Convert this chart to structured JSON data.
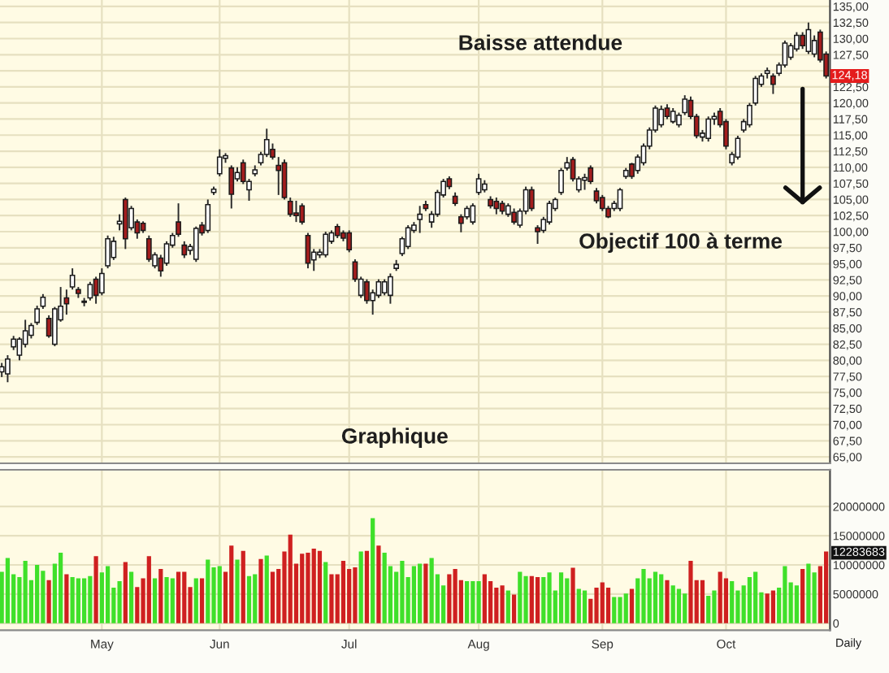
{
  "chart_data": [
    {
      "type": "candlestick",
      "categories": [
        null,
        null,
        null,
        null,
        null,
        null,
        null,
        null,
        null,
        null,
        null,
        null,
        null,
        null,
        null,
        null,
        null,
        null,
        null,
        null,
        null,
        null,
        null,
        null,
        null,
        null,
        null,
        null,
        null,
        null,
        null,
        null,
        null,
        null,
        null,
        null,
        null,
        null,
        null,
        null,
        null,
        null,
        null,
        null,
        null,
        null,
        null,
        null,
        null,
        null,
        null,
        null,
        null,
        null,
        null,
        null,
        null,
        null,
        null,
        null,
        null,
        null,
        null,
        null,
        null,
        null,
        null,
        null,
        null,
        null,
        null,
        null,
        null,
        null,
        null,
        null,
        null,
        null,
        null,
        null,
        null,
        null,
        null,
        null,
        null,
        null,
        null,
        null,
        null,
        null,
        null,
        null,
        null,
        null,
        null,
        null,
        null,
        null,
        null,
        null,
        null,
        null,
        null,
        null,
        null,
        null,
        null,
        null,
        null,
        null,
        null,
        null,
        null,
        null,
        null,
        null,
        null,
        null,
        null,
        null,
        null,
        null,
        null,
        null,
        null,
        null,
        null,
        null,
        null,
        null,
        null,
        null,
        null,
        null,
        null,
        null,
        null,
        null,
        null,
        null,
        null
      ],
      "ohlc": [
        [
          78.2,
          79.6,
          77.4,
          79.0
        ],
        [
          77.9,
          80.8,
          76.6,
          80.2
        ],
        [
          82.1,
          83.8,
          81.6,
          83.3
        ],
        [
          80.8,
          83.6,
          80.0,
          83.3
        ],
        [
          82.5,
          86.3,
          82.0,
          84.6
        ],
        [
          83.9,
          85.8,
          83.4,
          85.4
        ],
        [
          85.9,
          88.5,
          85.5,
          88.0
        ],
        [
          88.4,
          90.3,
          88.0,
          89.8
        ],
        [
          86.5,
          87.0,
          83.5,
          83.8
        ],
        [
          82.5,
          88.3,
          82.2,
          88.0
        ],
        [
          86.3,
          91.4,
          86.0,
          88.4
        ],
        [
          89.7,
          91.0,
          87.1,
          88.8
        ],
        [
          91.4,
          94.3,
          91.0,
          93.2
        ],
        [
          91.0,
          91.4,
          89.7,
          90.4
        ],
        [
          89.2,
          89.7,
          88.4,
          89.0
        ],
        [
          89.7,
          92.2,
          89.3,
          91.8
        ],
        [
          92.6,
          93.0,
          88.8,
          90.1
        ],
        [
          90.5,
          94.3,
          90.1,
          93.5
        ],
        [
          94.7,
          99.4,
          94.3,
          98.9
        ],
        [
          96.0,
          99.2,
          95.6,
          98.5
        ],
        [
          101.2,
          102.7,
          100.2,
          101.6
        ],
        [
          105.0,
          105.3,
          97.3,
          98.9
        ],
        [
          100.6,
          104.0,
          100.2,
          103.6
        ],
        [
          101.5,
          101.9,
          98.9,
          99.8
        ],
        [
          101.3,
          101.6,
          99.8,
          100.2
        ],
        [
          98.9,
          99.4,
          95.3,
          95.7
        ],
        [
          94.7,
          96.8,
          94.3,
          96.4
        ],
        [
          95.9,
          96.4,
          93.0,
          93.9
        ],
        [
          95.1,
          98.5,
          94.7,
          98.1
        ],
        [
          97.9,
          99.8,
          97.5,
          99.4
        ],
        [
          101.5,
          104.4,
          99.2,
          99.6
        ],
        [
          97.9,
          98.5,
          95.9,
          96.4
        ],
        [
          97.1,
          98.1,
          96.4,
          97.7
        ],
        [
          95.7,
          100.8,
          95.3,
          100.5
        ],
        [
          101.0,
          101.5,
          99.4,
          99.8
        ],
        [
          100.2,
          105.0,
          99.8,
          104.2
        ],
        [
          106.1,
          107.0,
          105.7,
          106.6
        ],
        [
          109.0,
          112.8,
          108.6,
          111.6
        ],
        [
          111.4,
          112.2,
          110.7,
          111.8
        ],
        [
          109.9,
          110.3,
          103.6,
          105.8
        ],
        [
          108.2,
          110.0,
          107.8,
          109.2
        ],
        [
          110.7,
          111.2,
          107.4,
          107.8
        ],
        [
          106.5,
          108.2,
          104.8,
          107.8
        ],
        [
          109.0,
          110.3,
          108.6,
          109.6
        ],
        [
          110.7,
          112.4,
          110.3,
          112.0
        ],
        [
          112.0,
          116.0,
          111.6,
          114.3
        ],
        [
          112.8,
          113.7,
          111.2,
          111.6
        ],
        [
          110.3,
          111.6,
          105.7,
          109.5
        ],
        [
          110.7,
          111.2,
          105.0,
          105.3
        ],
        [
          104.7,
          105.3,
          102.3,
          102.7
        ],
        [
          102.9,
          104.8,
          101.5,
          102.5
        ],
        [
          104.0,
          104.4,
          101.1,
          101.5
        ],
        [
          99.4,
          99.8,
          94.3,
          95.1
        ],
        [
          95.6,
          97.3,
          93.9,
          96.8
        ],
        [
          96.4,
          97.3,
          95.9,
          96.8
        ],
        [
          96.4,
          100.0,
          96.0,
          99.6
        ],
        [
          98.5,
          100.2,
          98.1,
          99.8
        ],
        [
          100.8,
          101.2,
          99.0,
          99.4
        ],
        [
          99.8,
          100.2,
          98.5,
          99.0
        ],
        [
          99.8,
          100.2,
          96.8,
          97.2
        ],
        [
          95.3,
          95.7,
          92.2,
          92.6
        ],
        [
          90.1,
          93.0,
          89.7,
          92.6
        ],
        [
          92.2,
          92.6,
          88.8,
          89.3
        ],
        [
          89.3,
          91.0,
          87.1,
          90.5
        ],
        [
          90.1,
          92.6,
          89.7,
          92.2
        ],
        [
          90.5,
          92.6,
          90.1,
          92.2
        ],
        [
          90.1,
          93.5,
          88.8,
          93.0
        ],
        [
          94.3,
          95.6,
          93.9,
          94.9
        ],
        [
          96.6,
          99.2,
          96.2,
          98.9
        ],
        [
          97.7,
          101.0,
          97.3,
          100.6
        ],
        [
          100.2,
          101.5,
          99.8,
          101.0
        ],
        [
          101.9,
          104.0,
          99.8,
          102.7
        ],
        [
          104.2,
          104.8,
          103.2,
          103.6
        ],
        [
          101.5,
          103.2,
          100.6,
          102.7
        ],
        [
          102.7,
          106.5,
          102.3,
          106.1
        ],
        [
          105.7,
          108.2,
          105.3,
          107.8
        ],
        [
          108.2,
          108.6,
          106.6,
          107.0
        ],
        [
          105.5,
          106.1,
          104.0,
          104.4
        ],
        [
          102.3,
          102.7,
          99.9,
          101.3
        ],
        [
          102.3,
          104.0,
          101.9,
          103.6
        ],
        [
          101.5,
          104.4,
          101.1,
          104.0
        ],
        [
          106.1,
          109.0,
          105.7,
          108.2
        ],
        [
          106.5,
          108.0,
          106.1,
          107.4
        ],
        [
          105.0,
          105.5,
          103.6,
          104.0
        ],
        [
          104.7,
          105.3,
          102.7,
          103.6
        ],
        [
          104.4,
          104.8,
          102.7,
          103.2
        ],
        [
          102.7,
          104.4,
          102.3,
          104.0
        ],
        [
          103.0,
          103.6,
          101.1,
          101.5
        ],
        [
          101.0,
          103.6,
          100.6,
          103.2
        ],
        [
          103.2,
          107.0,
          102.7,
          106.5
        ],
        [
          106.5,
          107.0,
          103.2,
          103.6
        ],
        [
          100.6,
          101.0,
          98.1,
          100.0
        ],
        [
          100.2,
          102.3,
          99.8,
          101.9
        ],
        [
          101.5,
          104.8,
          101.1,
          104.4
        ],
        [
          103.6,
          105.3,
          103.2,
          105.0
        ],
        [
          106.1,
          109.9,
          105.7,
          109.5
        ],
        [
          109.9,
          111.6,
          109.5,
          110.7
        ],
        [
          111.2,
          111.6,
          107.8,
          108.2
        ],
        [
          106.5,
          108.6,
          106.1,
          108.2
        ],
        [
          108.0,
          109.0,
          106.5,
          108.4
        ],
        [
          109.9,
          110.3,
          107.4,
          107.8
        ],
        [
          106.3,
          106.8,
          104.4,
          104.8
        ],
        [
          105.3,
          105.7,
          103.2,
          103.6
        ],
        [
          103.6,
          104.0,
          102.1,
          102.3
        ],
        [
          103.6,
          104.8,
          103.2,
          104.4
        ],
        [
          103.6,
          106.8,
          103.2,
          106.5
        ],
        [
          108.6,
          109.9,
          108.2,
          109.5
        ],
        [
          110.5,
          110.7,
          108.2,
          108.6
        ],
        [
          109.5,
          112.0,
          109.0,
          111.6
        ],
        [
          110.7,
          113.7,
          110.3,
          113.3
        ],
        [
          113.3,
          116.2,
          112.8,
          115.8
        ],
        [
          115.8,
          119.6,
          115.4,
          119.2
        ],
        [
          116.6,
          119.6,
          116.2,
          119.0
        ],
        [
          119.2,
          119.8,
          117.5,
          117.9
        ],
        [
          117.1,
          119.2,
          116.8,
          118.7
        ],
        [
          116.6,
          118.5,
          116.2,
          118.1
        ],
        [
          118.5,
          121.2,
          118.1,
          120.6
        ],
        [
          120.4,
          121.0,
          117.5,
          117.9
        ],
        [
          117.9,
          118.3,
          114.5,
          114.9
        ],
        [
          114.7,
          115.8,
          114.0,
          115.3
        ],
        [
          114.5,
          117.9,
          114.0,
          117.5
        ],
        [
          117.5,
          118.5,
          116.6,
          117.9
        ],
        [
          118.7,
          119.2,
          116.2,
          116.6
        ],
        [
          117.1,
          117.5,
          112.8,
          113.3
        ],
        [
          110.7,
          112.4,
          110.3,
          112.0
        ],
        [
          111.6,
          114.9,
          111.2,
          114.5
        ],
        [
          115.8,
          117.5,
          115.4,
          117.1
        ],
        [
          116.6,
          120.0,
          116.2,
          119.6
        ],
        [
          120.0,
          124.2,
          119.6,
          123.8
        ],
        [
          122.9,
          124.6,
          122.5,
          124.2
        ],
        [
          124.6,
          125.5,
          123.8,
          125.0
        ],
        [
          124.2,
          124.6,
          121.4,
          122.9
        ],
        [
          124.6,
          126.3,
          124.2,
          125.9
        ],
        [
          125.9,
          129.7,
          125.5,
          129.3
        ],
        [
          127.1,
          129.3,
          126.7,
          128.9
        ],
        [
          128.4,
          131.0,
          128.0,
          130.5
        ],
        [
          130.5,
          131.0,
          128.4,
          128.9
        ],
        [
          128.0,
          132.5,
          127.6,
          131.4
        ],
        [
          127.6,
          130.5,
          127.1,
          129.7
        ],
        [
          131.0,
          131.4,
          126.3,
          126.7
        ],
        [
          127.6,
          128.0,
          123.8,
          124.18
        ]
      ],
      "colors": [
        "#ffffff",
        "#ffffff",
        "#ffffff",
        "#ffffff",
        "#ffffff",
        "#ffffff",
        "#ffffff",
        "#ffffff",
        "#a31d1d",
        "#ffffff",
        "#ffffff",
        "#a31d1d",
        "#ffffff",
        "#a31d1d",
        "#a31d1d",
        "#ffffff",
        "#a31d1d",
        "#ffffff",
        "#ffffff",
        "#ffffff",
        "#ffffff",
        "#a31d1d",
        "#ffffff",
        "#a31d1d",
        "#a31d1d",
        "#a31d1d",
        "#ffffff",
        "#a31d1d",
        "#ffffff",
        "#ffffff",
        "#a31d1d",
        "#a31d1d",
        "#ffffff",
        "#ffffff",
        "#a31d1d",
        "#ffffff",
        "#ffffff",
        "#ffffff",
        "#ffffff",
        "#a31d1d",
        "#ffffff",
        "#a31d1d",
        "#ffffff",
        "#ffffff",
        "#ffffff",
        "#ffffff",
        "#a31d1d",
        "#a31d1d",
        "#a31d1d",
        "#a31d1d",
        "#a31d1d",
        "#a31d1d",
        "#a31d1d",
        "#ffffff",
        "#ffffff",
        "#ffffff",
        "#ffffff",
        "#a31d1d",
        "#a31d1d",
        "#a31d1d",
        "#a31d1d",
        "#ffffff",
        "#a31d1d",
        "#ffffff",
        "#ffffff",
        "#ffffff",
        "#ffffff",
        "#ffffff",
        "#ffffff",
        "#ffffff",
        "#ffffff",
        "#ffffff",
        "#a31d1d",
        "#ffffff",
        "#ffffff",
        "#ffffff",
        "#a31d1d",
        "#a31d1d",
        "#a31d1d",
        "#ffffff",
        "#ffffff",
        "#ffffff",
        "#ffffff",
        "#a31d1d",
        "#a31d1d",
        "#a31d1d",
        "#ffffff",
        "#a31d1d",
        "#ffffff",
        "#ffffff",
        "#a31d1d",
        "#a31d1d",
        "#ffffff",
        "#ffffff",
        "#ffffff",
        "#ffffff",
        "#ffffff",
        "#a31d1d",
        "#ffffff",
        "#ffffff",
        "#a31d1d",
        "#a31d1d",
        "#a31d1d",
        "#a31d1d",
        "#ffffff",
        "#ffffff",
        "#ffffff",
        "#a31d1d",
        "#ffffff",
        "#ffffff",
        "#ffffff",
        "#ffffff",
        "#ffffff",
        "#a31d1d",
        "#ffffff",
        "#ffffff",
        "#ffffff",
        "#a31d1d",
        "#a31d1d",
        "#ffffff",
        "#ffffff",
        "#ffffff",
        "#a31d1d",
        "#a31d1d",
        "#ffffff",
        "#ffffff",
        "#ffffff",
        "#ffffff",
        "#ffffff",
        "#ffffff",
        "#ffffff",
        "#a31d1d",
        "#ffffff",
        "#ffffff",
        "#ffffff",
        "#ffffff",
        "#a31d1d",
        "#ffffff",
        "#ffffff",
        "#a31d1d",
        "#a31d1d"
      ],
      "value_labels": [
        null,
        null,
        null,
        null,
        null,
        null,
        null,
        null,
        null,
        null,
        null,
        null,
        null,
        null,
        null,
        null,
        null,
        null,
        null,
        null,
        null,
        null,
        null,
        null,
        null,
        null,
        null,
        null,
        null,
        null,
        null,
        null,
        null,
        null,
        null,
        null,
        null,
        null,
        null,
        null,
        null,
        null,
        null,
        null,
        null,
        null,
        null,
        null,
        null,
        null,
        null,
        null,
        null,
        null,
        null,
        null,
        null,
        null,
        null,
        null,
        null,
        null,
        null,
        null,
        null,
        null,
        null,
        null,
        null,
        null,
        null,
        null,
        null,
        null,
        null,
        null,
        null,
        null,
        null,
        null,
        null,
        null,
        null,
        null,
        null,
        null,
        null,
        null,
        null,
        null,
        null,
        null,
        null,
        null,
        null,
        null,
        null,
        null,
        null,
        null,
        null,
        null,
        null,
        null,
        null,
        null,
        null,
        null,
        null,
        null,
        null,
        null,
        null,
        null,
        null,
        null,
        null,
        null,
        null,
        null,
        null,
        null,
        null,
        null,
        null,
        null,
        null,
        null,
        null,
        null,
        null,
        null,
        null,
        null,
        null,
        null,
        null,
        null,
        null,
        null,
        "124,18"
      ],
      "ylim": [
        64,
        136
      ],
      "yticks": [
        {
          "value": 65,
          "label": "65,00"
        },
        {
          "value": 67.5,
          "label": "67,50"
        },
        {
          "value": 70,
          "label": "70,00"
        },
        {
          "value": 72.5,
          "label": "72,50"
        },
        {
          "value": 75,
          "label": "75,00"
        },
        {
          "value": 77.5,
          "label": "77,50"
        },
        {
          "value": 80,
          "label": "80,00"
        },
        {
          "value": 82.5,
          "label": "82,50"
        },
        {
          "value": 85,
          "label": "85,00"
        },
        {
          "value": 87.5,
          "label": "87,50"
        },
        {
          "value": 90,
          "label": "90,00"
        },
        {
          "value": 92.5,
          "label": "92,50"
        },
        {
          "value": 95,
          "label": "95,00"
        },
        {
          "value": 97.5,
          "label": "97,50"
        },
        {
          "value": 100,
          "label": "100,00"
        },
        {
          "value": 102.5,
          "label": "102,50"
        },
        {
          "value": 105,
          "label": "105,00"
        },
        {
          "value": 107.5,
          "label": "107,50"
        },
        {
          "value": 110,
          "label": "110,00"
        },
        {
          "value": 112.5,
          "label": "112,50"
        },
        {
          "value": 115,
          "label": "115,00"
        },
        {
          "value": 117.5,
          "label": "117,50"
        },
        {
          "value": 120,
          "label": "120,00"
        },
        {
          "value": 122.5,
          "label": "122,50"
        },
        {
          "value": 125,
          "label": null
        },
        {
          "value": 127.5,
          "label": "127,50"
        },
        {
          "value": 130,
          "label": "130,00"
        },
        {
          "value": 132.5,
          "label": "132,50"
        },
        {
          "value": 135,
          "label": "135,00"
        }
      ],
      "grid": true,
      "annotations": [
        "Baisse attendue",
        "Objectif 100 à terme",
        "Graphique"
      ]
    },
    {
      "type": "bar",
      "categories": [
        null,
        null,
        null,
        null,
        null,
        null,
        null,
        null,
        null,
        null,
        null,
        null,
        null,
        null,
        null,
        null,
        null,
        "May",
        null,
        null,
        null,
        null,
        null,
        null,
        null,
        null,
        null,
        null,
        null,
        null,
        null,
        null,
        null,
        null,
        null,
        null,
        null,
        "Jun",
        null,
        null,
        null,
        null,
        null,
        null,
        null,
        null,
        null,
        null,
        null,
        null,
        null,
        null,
        null,
        null,
        null,
        null,
        null,
        null,
        null,
        "Jul",
        null,
        null,
        null,
        null,
        null,
        null,
        null,
        null,
        null,
        null,
        null,
        null,
        null,
        null,
        null,
        null,
        null,
        null,
        null,
        null,
        null,
        "Aug",
        null,
        null,
        null,
        null,
        null,
        null,
        null,
        null,
        null,
        null,
        null,
        null,
        null,
        null,
        null,
        null,
        null,
        null,
        null,
        null,
        "Sep",
        null,
        null,
        null,
        null,
        null,
        null,
        null,
        null,
        null,
        null,
        null,
        null,
        null,
        null,
        null,
        null,
        null,
        null,
        null,
        null,
        "Oct",
        null,
        null,
        null,
        null,
        null,
        null,
        null,
        null,
        null,
        null,
        null,
        null,
        null,
        null,
        null,
        null,
        null
      ],
      "values": [
        8800000,
        11200000,
        8400000,
        7900000,
        10700000,
        7400000,
        10000000,
        9000000,
        7400000,
        10200000,
        12100000,
        8400000,
        7900000,
        7700000,
        7700000,
        8100000,
        11500000,
        8700000,
        9800000,
        6100000,
        7200000,
        10500000,
        8800000,
        6200000,
        7700000,
        11500000,
        7700000,
        9300000,
        7900000,
        7700000,
        8800000,
        8800000,
        6200000,
        7700000,
        7700000,
        10900000,
        9600000,
        9800000,
        8800000,
        13300000,
        10900000,
        12400000,
        8100000,
        8400000,
        11000000,
        11600000,
        8800000,
        9300000,
        12300000,
        15200000,
        10200000,
        11900000,
        12100000,
        12800000,
        12400000,
        10500000,
        8400000,
        8400000,
        10700000,
        9300000,
        9600000,
        12300000,
        12400000,
        18000000,
        13300000,
        12100000,
        9800000,
        8800000,
        10700000,
        7900000,
        9800000,
        10200000,
        10200000,
        11200000,
        8400000,
        6500000,
        8400000,
        9300000,
        7400000,
        7200000,
        7200000,
        7200000,
        8400000,
        7200000,
        6100000,
        6500000,
        5600000,
        4900000,
        8800000,
        8100000,
        8100000,
        7900000,
        7900000,
        8700000,
        5600000,
        8700000,
        7700000,
        9500000,
        5900000,
        5600000,
        4200000,
        6100000,
        7000000,
        6100000,
        4500000,
        4500000,
        5100000,
        5900000,
        7700000,
        9300000,
        7700000,
        8800000,
        8400000,
        7400000,
        6500000,
        5900000,
        5100000,
        10700000,
        7400000,
        7400000,
        4700000,
        5600000,
        8800000,
        7700000,
        7200000,
        5600000,
        6500000,
        7900000,
        8800000,
        5300000,
        5100000,
        5600000,
        6100000,
        9800000,
        7000000,
        6500000,
        9300000,
        10200000,
        8700000,
        9800000,
        12283683
      ],
      "colors": [
        "#3fe02a",
        "#3fe02a",
        "#3fe02a",
        "#3fe02a",
        "#3fe02a",
        "#3fe02a",
        "#3fe02a",
        "#3fe02a",
        "#cf2020",
        "#3fe02a",
        "#3fe02a",
        "#cf2020",
        "#3fe02a",
        "#3fe02a",
        "#3fe02a",
        "#3fe02a",
        "#cf2020",
        "#3fe02a",
        "#3fe02a",
        "#3fe02a",
        "#3fe02a",
        "#cf2020",
        "#3fe02a",
        "#cf2020",
        "#cf2020",
        "#cf2020",
        "#3fe02a",
        "#cf2020",
        "#3fe02a",
        "#3fe02a",
        "#cf2020",
        "#cf2020",
        "#cf2020",
        "#3fe02a",
        "#cf2020",
        "#3fe02a",
        "#3fe02a",
        "#3fe02a",
        "#cf2020",
        "#cf2020",
        "#3fe02a",
        "#cf2020",
        "#3fe02a",
        "#3fe02a",
        "#cf2020",
        "#3fe02a",
        "#cf2020",
        "#cf2020",
        "#cf2020",
        "#cf2020",
        "#cf2020",
        "#cf2020",
        "#cf2020",
        "#cf2020",
        "#cf2020",
        "#3fe02a",
        "#cf2020",
        "#cf2020",
        "#cf2020",
        "#cf2020",
        "#cf2020",
        "#3fe02a",
        "#cf2020",
        "#3fe02a",
        "#cf2020",
        "#3fe02a",
        "#3fe02a",
        "#3fe02a",
        "#3fe02a",
        "#3fe02a",
        "#3fe02a",
        "#3fe02a",
        "#cf2020",
        "#3fe02a",
        "#3fe02a",
        "#3fe02a",
        "#cf2020",
        "#cf2020",
        "#cf2020",
        "#3fe02a",
        "#3fe02a",
        "#3fe02a",
        "#cf2020",
        "#cf2020",
        "#cf2020",
        "#cf2020",
        "#3fe02a",
        "#cf2020",
        "#3fe02a",
        "#3fe02a",
        "#cf2020",
        "#cf2020",
        "#3fe02a",
        "#3fe02a",
        "#3fe02a",
        "#3fe02a",
        "#3fe02a",
        "#cf2020",
        "#3fe02a",
        "#3fe02a",
        "#cf2020",
        "#cf2020",
        "#cf2020",
        "#cf2020",
        "#3fe02a",
        "#3fe02a",
        "#3fe02a",
        "#cf2020",
        "#3fe02a",
        "#3fe02a",
        "#3fe02a",
        "#3fe02a",
        "#3fe02a",
        "#cf2020",
        "#3fe02a",
        "#3fe02a",
        "#3fe02a",
        "#cf2020",
        "#cf2020",
        "#cf2020",
        "#3fe02a",
        "#3fe02a",
        "#cf2020",
        "#cf2020",
        "#3fe02a",
        "#3fe02a",
        "#3fe02a",
        "#3fe02a",
        "#3fe02a",
        "#3fe02a",
        "#cf2020",
        "#cf2020",
        "#3fe02a",
        "#3fe02a",
        "#3fe02a",
        "#3fe02a",
        "#cf2020",
        "#3fe02a",
        "#3fe02a",
        "#cf2020",
        "#cf2020"
      ],
      "ylim": [
        -1200000,
        26300000
      ],
      "yticks": [
        0,
        5000000,
        10000000,
        {
          "value": 12283683,
          "label": "12283683"
        },
        15000000,
        20000000
      ],
      "grid": true,
      "annotations": [
        "Daily"
      ]
    }
  ]
}
